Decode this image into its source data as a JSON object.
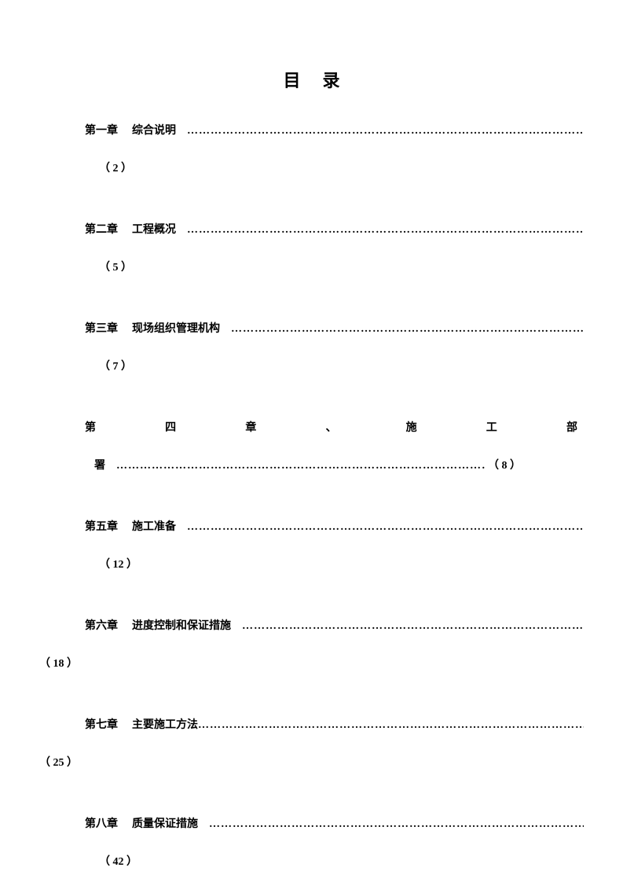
{
  "title": "目录",
  "dots_fill": "……………………………………………………………………………………………………………………………………………………………",
  "entries": [
    {
      "chapter": "第一章",
      "chapter_title": "综合说明",
      "page": "（ 2 ）"
    },
    {
      "chapter": "第二章",
      "chapter_title": "工程概况",
      "page": "（ 5 ）"
    },
    {
      "chapter": "第三章",
      "chapter_title": "现场组织管理机构",
      "page": "（ 7 ）"
    },
    {
      "chapter4_chars": [
        "第",
        "四",
        "章",
        "、",
        "施",
        "工",
        "部"
      ],
      "chapter4_line2": "署",
      "page": "（ 8 ）"
    },
    {
      "chapter": "第五章",
      "chapter_title": "施工准备",
      "page": "（ 12 ）"
    },
    {
      "chapter": "第六章",
      "chapter_title": "进度控制和保证措施",
      "page": "（ 18 ）",
      "outdent": true
    },
    {
      "chapter": "第七章",
      "chapter_title": "主要施工方法",
      "page": "（ 25 ）",
      "outdent": true,
      "no_gap_dots": true
    },
    {
      "chapter": "第八章",
      "chapter_title": "质量保证措施",
      "page": "（ 42 ）"
    }
  ],
  "colors": {
    "background": "#ffffff",
    "text": "#000000"
  },
  "typography": {
    "title_fontsize": 22,
    "body_fontsize": 14,
    "font_family": "SimSun"
  }
}
